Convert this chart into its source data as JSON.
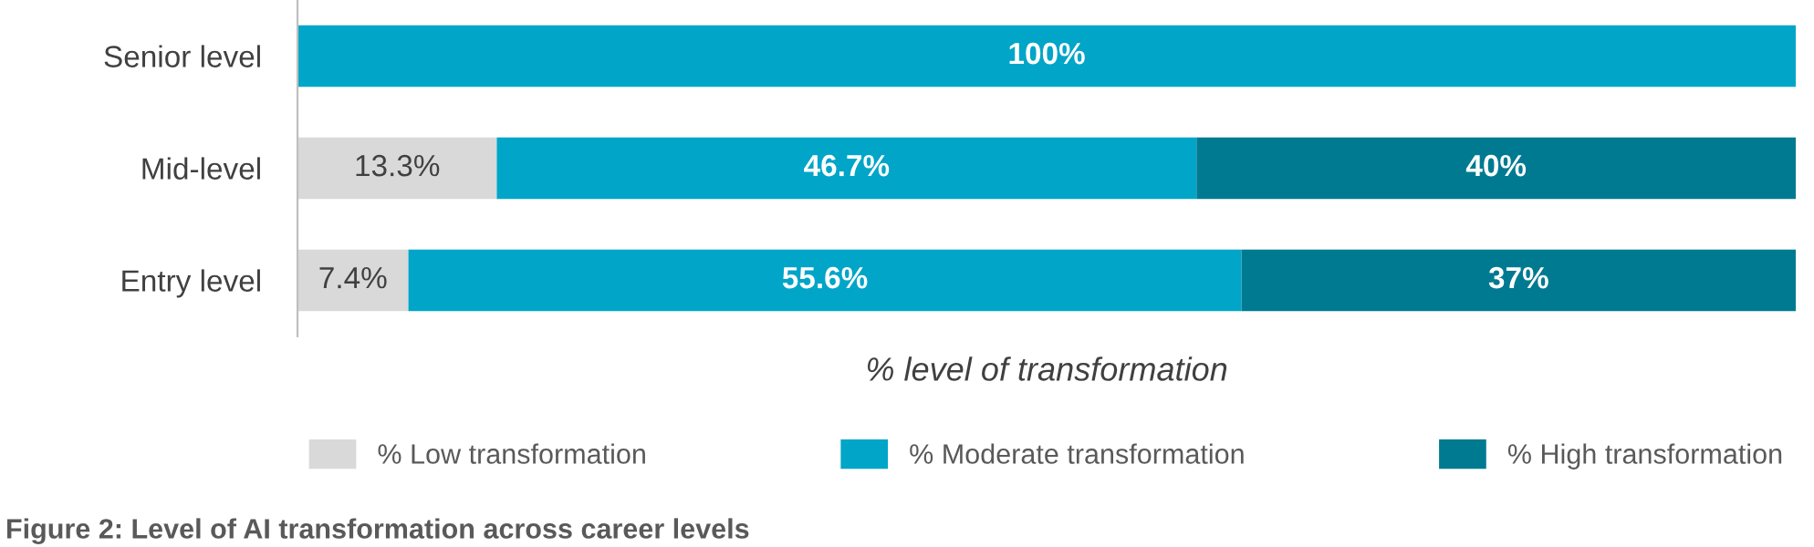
{
  "chart_data": {
    "type": "bar",
    "orientation": "horizontal",
    "stacked": true,
    "categories": [
      "Senior level",
      "Mid-level",
      "Entry level"
    ],
    "xlabel": "% level of transformation",
    "series": [
      {
        "name": "% Low transformation",
        "color": "#d9d9d9",
        "values": [
          null,
          13.3,
          7.4
        ],
        "value_labels": [
          null,
          "13.3%",
          "7.4%"
        ]
      },
      {
        "name": "% Moderate transformation",
        "color": "#00a5c8",
        "values": [
          100,
          46.7,
          55.6
        ],
        "value_labels": [
          "100%",
          "46.7%",
          "55.6%"
        ]
      },
      {
        "name": "% High transformation",
        "color": "#007a91",
        "values": [
          null,
          40,
          37
        ],
        "value_labels": [
          null,
          "40%",
          "37%"
        ]
      }
    ],
    "legend": "bottom",
    "annotations": [
      "Figure 2: Level of AI transformation across career levels"
    ]
  }
}
